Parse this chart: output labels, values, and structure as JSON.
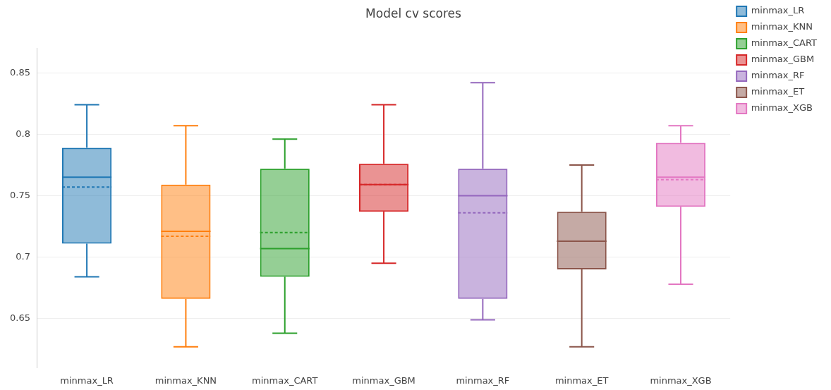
{
  "chart_data": {
    "type": "box",
    "title": "Model cv scores",
    "categories": [
      "minmax_LR",
      "minmax_KNN",
      "minmax_CART",
      "minmax_GBM",
      "minmax_RF",
      "minmax_ET",
      "minmax_XGB"
    ],
    "ylim": [
      0.61,
      0.87
    ],
    "yticks": [
      0.65,
      0.7,
      0.75,
      0.8,
      0.85
    ],
    "grid": "y",
    "legend": "top right",
    "series": [
      {
        "name": "minmax_LR",
        "color": "#1f77b4",
        "boxes": [
          {
            "low": 0.684,
            "q1": 0.711,
            "median": 0.765,
            "q3": 0.789,
            "high": 0.824,
            "mean": 0.757
          },
          null,
          null,
          null,
          null,
          null,
          null
        ]
      },
      {
        "name": "minmax_KNN",
        "color": "#ff7f0e",
        "boxes": [
          null,
          {
            "low": 0.627,
            "q1": 0.666,
            "median": 0.721,
            "q3": 0.759,
            "high": 0.807,
            "mean": 0.717
          },
          null,
          null,
          null,
          null,
          null
        ]
      },
      {
        "name": "minmax_CART",
        "color": "#2ca02c",
        "boxes": [
          null,
          null,
          {
            "low": 0.638,
            "q1": 0.684,
            "median": 0.707,
            "q3": 0.772,
            "high": 0.796,
            "mean": 0.72
          },
          null,
          null,
          null,
          null
        ]
      },
      {
        "name": "minmax_GBM",
        "color": "#d62728",
        "boxes": [
          null,
          null,
          null,
          {
            "low": 0.695,
            "q1": 0.737,
            "median": 0.759,
            "q3": 0.776,
            "high": 0.824,
            "mean": 0.759
          },
          null,
          null,
          null
        ]
      },
      {
        "name": "minmax_RF",
        "color": "#9467bd",
        "boxes": [
          null,
          null,
          null,
          null,
          {
            "low": 0.649,
            "q1": 0.666,
            "median": 0.75,
            "q3": 0.772,
            "high": 0.842,
            "mean": 0.736
          },
          null,
          null
        ]
      },
      {
        "name": "minmax_ET",
        "color": "#8c564b",
        "boxes": [
          null,
          null,
          null,
          null,
          null,
          {
            "low": 0.627,
            "q1": 0.69,
            "median": 0.713,
            "q3": 0.737,
            "high": 0.775,
            "mean": 0.713
          },
          null
        ]
      },
      {
        "name": "minmax_XGB",
        "color": "#e377c2",
        "boxes": [
          null,
          null,
          null,
          null,
          null,
          null,
          {
            "low": 0.678,
            "q1": 0.741,
            "median": 0.765,
            "q3": 0.793,
            "high": 0.807,
            "mean": 0.763
          }
        ]
      }
    ]
  }
}
